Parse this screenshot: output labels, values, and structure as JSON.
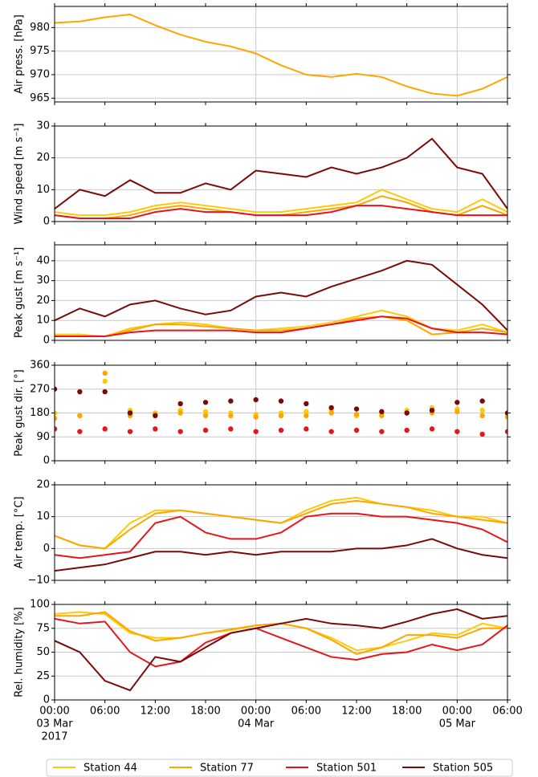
{
  "chart_data": [
    {
      "type": "line",
      "ylabel": "Air press. [hPa]",
      "grid": true,
      "ylim": [
        964.2,
        984.5
      ],
      "yticks": [
        965,
        970,
        975,
        980
      ],
      "x": [
        "2017-03-03 00:00",
        "2017-03-03 03:00",
        "2017-03-03 06:00",
        "2017-03-03 09:00",
        "2017-03-03 12:00",
        "2017-03-03 15:00",
        "2017-03-03 18:00",
        "2017-03-03 21:00",
        "2017-03-04 00:00",
        "2017-03-04 03:00",
        "2017-03-04 06:00",
        "2017-03-04 09:00",
        "2017-03-04 12:00",
        "2017-03-04 15:00",
        "2017-03-04 18:00",
        "2017-03-04 21:00",
        "2017-03-05 00:00",
        "2017-03-05 03:00",
        "2017-03-05 06:00"
      ],
      "color": "#ffa500",
      "values": [
        981,
        981.3,
        982.2,
        982.8,
        980.5,
        978.5,
        977,
        976,
        974.5,
        972,
        970,
        969.5,
        970.2,
        969.5,
        967.5,
        966,
        965.5,
        967,
        969.5
      ]
    },
    {
      "type": "line",
      "ylabel": "Wind speed [m s⁻¹]",
      "grid": true,
      "ylim": [
        0,
        30
      ],
      "yticks": [
        0,
        10,
        20,
        30
      ],
      "x": [
        "2017-03-03 00:00",
        "2017-03-03 03:00",
        "2017-03-03 06:00",
        "2017-03-03 09:00",
        "2017-03-03 12:00",
        "2017-03-03 15:00",
        "2017-03-03 18:00",
        "2017-03-03 21:00",
        "2017-03-04 00:00",
        "2017-03-04 03:00",
        "2017-03-04 06:00",
        "2017-03-04 09:00",
        "2017-03-04 12:00",
        "2017-03-04 15:00",
        "2017-03-04 18:00",
        "2017-03-04 21:00",
        "2017-03-05 00:00",
        "2017-03-05 03:00",
        "2017-03-05 06:00"
      ],
      "series": [
        {
          "name": "Station 44",
          "color": "#fbcb0a",
          "values": [
            3,
            2,
            2,
            3,
            5,
            6,
            5,
            4,
            3,
            3,
            4,
            5,
            6,
            10,
            7,
            4,
            3,
            7,
            3
          ]
        },
        {
          "name": "Station 77",
          "color": "#ffa500",
          "values": [
            2,
            1,
            1,
            2,
            4,
            5,
            4,
            3,
            2,
            2,
            3,
            4,
            5,
            8,
            6,
            3,
            2,
            5,
            2
          ]
        },
        {
          "name": "Station 501",
          "color": "#e8141b",
          "values": [
            2,
            1,
            1,
            1,
            3,
            4,
            3,
            3,
            2,
            2,
            2,
            3,
            5,
            5,
            4,
            3,
            2,
            2,
            2
          ]
        },
        {
          "name": "Station 505",
          "color": "#7a0a0a",
          "values": [
            4,
            10,
            8,
            13,
            9,
            9,
            12,
            10,
            16,
            15,
            14,
            17,
            15,
            17,
            20,
            26,
            17,
            15,
            4
          ]
        }
      ]
    },
    {
      "type": "line",
      "ylabel": "Peak gust [m s⁻¹]",
      "grid": true,
      "ylim": [
        0,
        48
      ],
      "yticks": [
        0,
        10,
        20,
        30,
        40
      ],
      "x": [
        "2017-03-03 00:00",
        "2017-03-03 03:00",
        "2017-03-03 06:00",
        "2017-03-03 09:00",
        "2017-03-03 12:00",
        "2017-03-03 15:00",
        "2017-03-03 18:00",
        "2017-03-03 21:00",
        "2017-03-04 00:00",
        "2017-03-04 03:00",
        "2017-03-04 06:00",
        "2017-03-04 09:00",
        "2017-03-04 12:00",
        "2017-03-04 15:00",
        "2017-03-04 18:00",
        "2017-03-04 21:00",
        "2017-03-05 00:00",
        "2017-03-05 03:00",
        "2017-03-05 06:00"
      ],
      "series": [
        {
          "name": "Station 44",
          "color": "#fbcb0a",
          "values": [
            3,
            3,
            2,
            6,
            8,
            9,
            8,
            6,
            5,
            6,
            7,
            9,
            12,
            15,
            12,
            6,
            5,
            8,
            4
          ]
        },
        {
          "name": "Station 77",
          "color": "#ffa500",
          "values": [
            2,
            2,
            2,
            5,
            8,
            8,
            7,
            6,
            5,
            5,
            6,
            8,
            11,
            12,
            10,
            3,
            4,
            6,
            4
          ]
        },
        {
          "name": "Station 501",
          "color": "#e8141b",
          "values": [
            2,
            2,
            2,
            4,
            5,
            5,
            5,
            5,
            4,
            4,
            6,
            8,
            10,
            12,
            11,
            6,
            4,
            4,
            3
          ]
        },
        {
          "name": "Station 505",
          "color": "#7a0a0a",
          "values": [
            10,
            16,
            12,
            18,
            20,
            16,
            13,
            15,
            22,
            24,
            22,
            27,
            31,
            35,
            40,
            38,
            28,
            18,
            5
          ]
        }
      ]
    },
    {
      "type": "scatter",
      "ylabel": "Peak gust dir. [°]",
      "grid": true,
      "ylim": [
        0,
        360
      ],
      "yticks": [
        0,
        90,
        180,
        270,
        360
      ],
      "x": [
        "2017-03-03 00:00",
        "2017-03-03 03:00",
        "2017-03-03 06:00",
        "2017-03-03 09:00",
        "2017-03-03 12:00",
        "2017-03-03 15:00",
        "2017-03-03 18:00",
        "2017-03-03 21:00",
        "2017-03-04 00:00",
        "2017-03-04 03:00",
        "2017-03-04 06:00",
        "2017-03-04 09:00",
        "2017-03-04 12:00",
        "2017-03-04 15:00",
        "2017-03-04 18:00",
        "2017-03-04 21:00",
        "2017-03-05 00:00",
        "2017-03-05 03:00",
        "2017-03-05 06:00"
      ],
      "series": [
        {
          "name": "Station 44",
          "color": "#fbcb0a",
          "values": [
            180,
            170,
            300,
            190,
            180,
            190,
            185,
            180,
            175,
            180,
            185,
            190,
            170,
            180,
            190,
            200,
            195,
            190,
            175
          ]
        },
        {
          "name": "Station 77",
          "color": "#ffa500",
          "values": [
            160,
            170,
            330,
            170,
            175,
            180,
            170,
            170,
            165,
            170,
            170,
            180,
            175,
            170,
            180,
            180,
            185,
            170,
            165
          ]
        },
        {
          "name": "Station 501",
          "color": "#e8141b",
          "values": [
            120,
            110,
            120,
            110,
            120,
            110,
            115,
            120,
            110,
            115,
            120,
            110,
            115,
            110,
            115,
            120,
            110,
            100,
            110
          ]
        },
        {
          "name": "Station 505",
          "color": "#7a0a0a",
          "values": [
            270,
            260,
            260,
            180,
            170,
            215,
            220,
            225,
            230,
            225,
            215,
            200,
            195,
            185,
            180,
            190,
            220,
            225,
            180
          ]
        }
      ]
    },
    {
      "type": "line",
      "ylabel": "Air temp. [°C]",
      "grid": true,
      "ylim": [
        -10,
        20
      ],
      "yticks": [
        {
          "value": -10,
          "label": "−10"
        },
        0,
        10,
        20
      ],
      "x": [
        "2017-03-03 00:00",
        "2017-03-03 03:00",
        "2017-03-03 06:00",
        "2017-03-03 09:00",
        "2017-03-03 12:00",
        "2017-03-03 15:00",
        "2017-03-03 18:00",
        "2017-03-03 21:00",
        "2017-03-04 00:00",
        "2017-03-04 03:00",
        "2017-03-04 06:00",
        "2017-03-04 09:00",
        "2017-03-04 12:00",
        "2017-03-04 15:00",
        "2017-03-04 18:00",
        "2017-03-04 21:00",
        "2017-03-05 00:00",
        "2017-03-05 03:00",
        "2017-03-05 06:00"
      ],
      "series": [
        {
          "name": "Station 44",
          "color": "#fbcb0a",
          "values": [
            4,
            1,
            0,
            8,
            12,
            12,
            11,
            10,
            9,
            8,
            12,
            15,
            16,
            14,
            13,
            12,
            10,
            10,
            8
          ]
        },
        {
          "name": "Station 77",
          "color": "#ffa500",
          "values": [
            4,
            1,
            0,
            6,
            11,
            12,
            11,
            10,
            9,
            8,
            11,
            14,
            15,
            14,
            13,
            11,
            10,
            9,
            8
          ]
        },
        {
          "name": "Station 501",
          "color": "#e8141b",
          "values": [
            -2,
            -3,
            -2,
            -1,
            8,
            10,
            5,
            3,
            3,
            5,
            10,
            11,
            11,
            10,
            10,
            9,
            8,
            6,
            2
          ]
        },
        {
          "name": "Station 505",
          "color": "#7a0a0a",
          "values": [
            -7,
            -6,
            -5,
            -3,
            -1,
            -1,
            -2,
            -1,
            -2,
            -1,
            -1,
            -1,
            0,
            0,
            1,
            3,
            0,
            -2,
            -3
          ]
        }
      ]
    },
    {
      "type": "line",
      "ylabel": "Rel. humidity [%]",
      "grid": true,
      "ylim": [
        0,
        100
      ],
      "yticks": [
        0,
        25,
        50,
        75,
        100
      ],
      "x": [
        "2017-03-03 00:00",
        "2017-03-03 03:00",
        "2017-03-03 06:00",
        "2017-03-03 09:00",
        "2017-03-03 12:00",
        "2017-03-03 15:00",
        "2017-03-03 18:00",
        "2017-03-03 21:00",
        "2017-03-04 00:00",
        "2017-03-04 03:00",
        "2017-03-04 06:00",
        "2017-03-04 09:00",
        "2017-03-04 12:00",
        "2017-03-04 15:00",
        "2017-03-04 18:00",
        "2017-03-04 21:00",
        "2017-03-05 00:00",
        "2017-03-05 03:00",
        "2017-03-05 06:00"
      ],
      "series": [
        {
          "name": "Station 44",
          "color": "#fbcb0a",
          "values": [
            90,
            92,
            90,
            70,
            65,
            65,
            70,
            73,
            78,
            80,
            75,
            65,
            52,
            55,
            62,
            70,
            68,
            80,
            75
          ]
        },
        {
          "name": "Station 77",
          "color": "#ffa500",
          "values": [
            88,
            88,
            92,
            72,
            62,
            65,
            70,
            74,
            78,
            80,
            75,
            63,
            48,
            55,
            68,
            68,
            65,
            75,
            75
          ]
        },
        {
          "name": "Station 501",
          "color": "#e8141b",
          "values": [
            85,
            80,
            82,
            50,
            35,
            40,
            60,
            70,
            75,
            65,
            55,
            45,
            42,
            48,
            50,
            58,
            52,
            58,
            78
          ]
        },
        {
          "name": "Station 505",
          "color": "#7a0a0a",
          "values": [
            62,
            50,
            20,
            10,
            45,
            40,
            55,
            70,
            75,
            80,
            85,
            80,
            78,
            75,
            82,
            90,
            95,
            85,
            88
          ]
        }
      ],
      "xlim": [
        "2017-03-03 00:00",
        "2017-03-05 06:00"
      ],
      "xticks": [
        {
          "value": "2017-03-03 00:00",
          "label": "00:00"
        },
        {
          "value": "2017-03-03 06:00",
          "label": "06:00"
        },
        {
          "value": "2017-03-03 12:00",
          "label": "12:00"
        },
        {
          "value": "2017-03-03 18:00",
          "label": "18:00"
        },
        {
          "value": "2017-03-04 00:00",
          "label": "00:00"
        },
        {
          "value": "2017-03-04 06:00",
          "label": "06:00"
        },
        {
          "value": "2017-03-04 12:00",
          "label": "12:00"
        },
        {
          "value": "2017-03-04 18:00",
          "label": "18:00"
        },
        {
          "value": "2017-03-05 00:00",
          "label": "00:00"
        },
        {
          "value": "2017-03-05 06:00",
          "label": "06:00"
        }
      ],
      "xdate_labels": [
        {
          "value": "2017-03-03 00:00",
          "label": "03 Mar"
        },
        {
          "value": "2017-03-04 00:00",
          "label": "04 Mar"
        },
        {
          "value": "2017-03-05 00:00",
          "label": "05 Mar"
        }
      ],
      "year_label": "2017",
      "legend": "lower center"
    }
  ]
}
